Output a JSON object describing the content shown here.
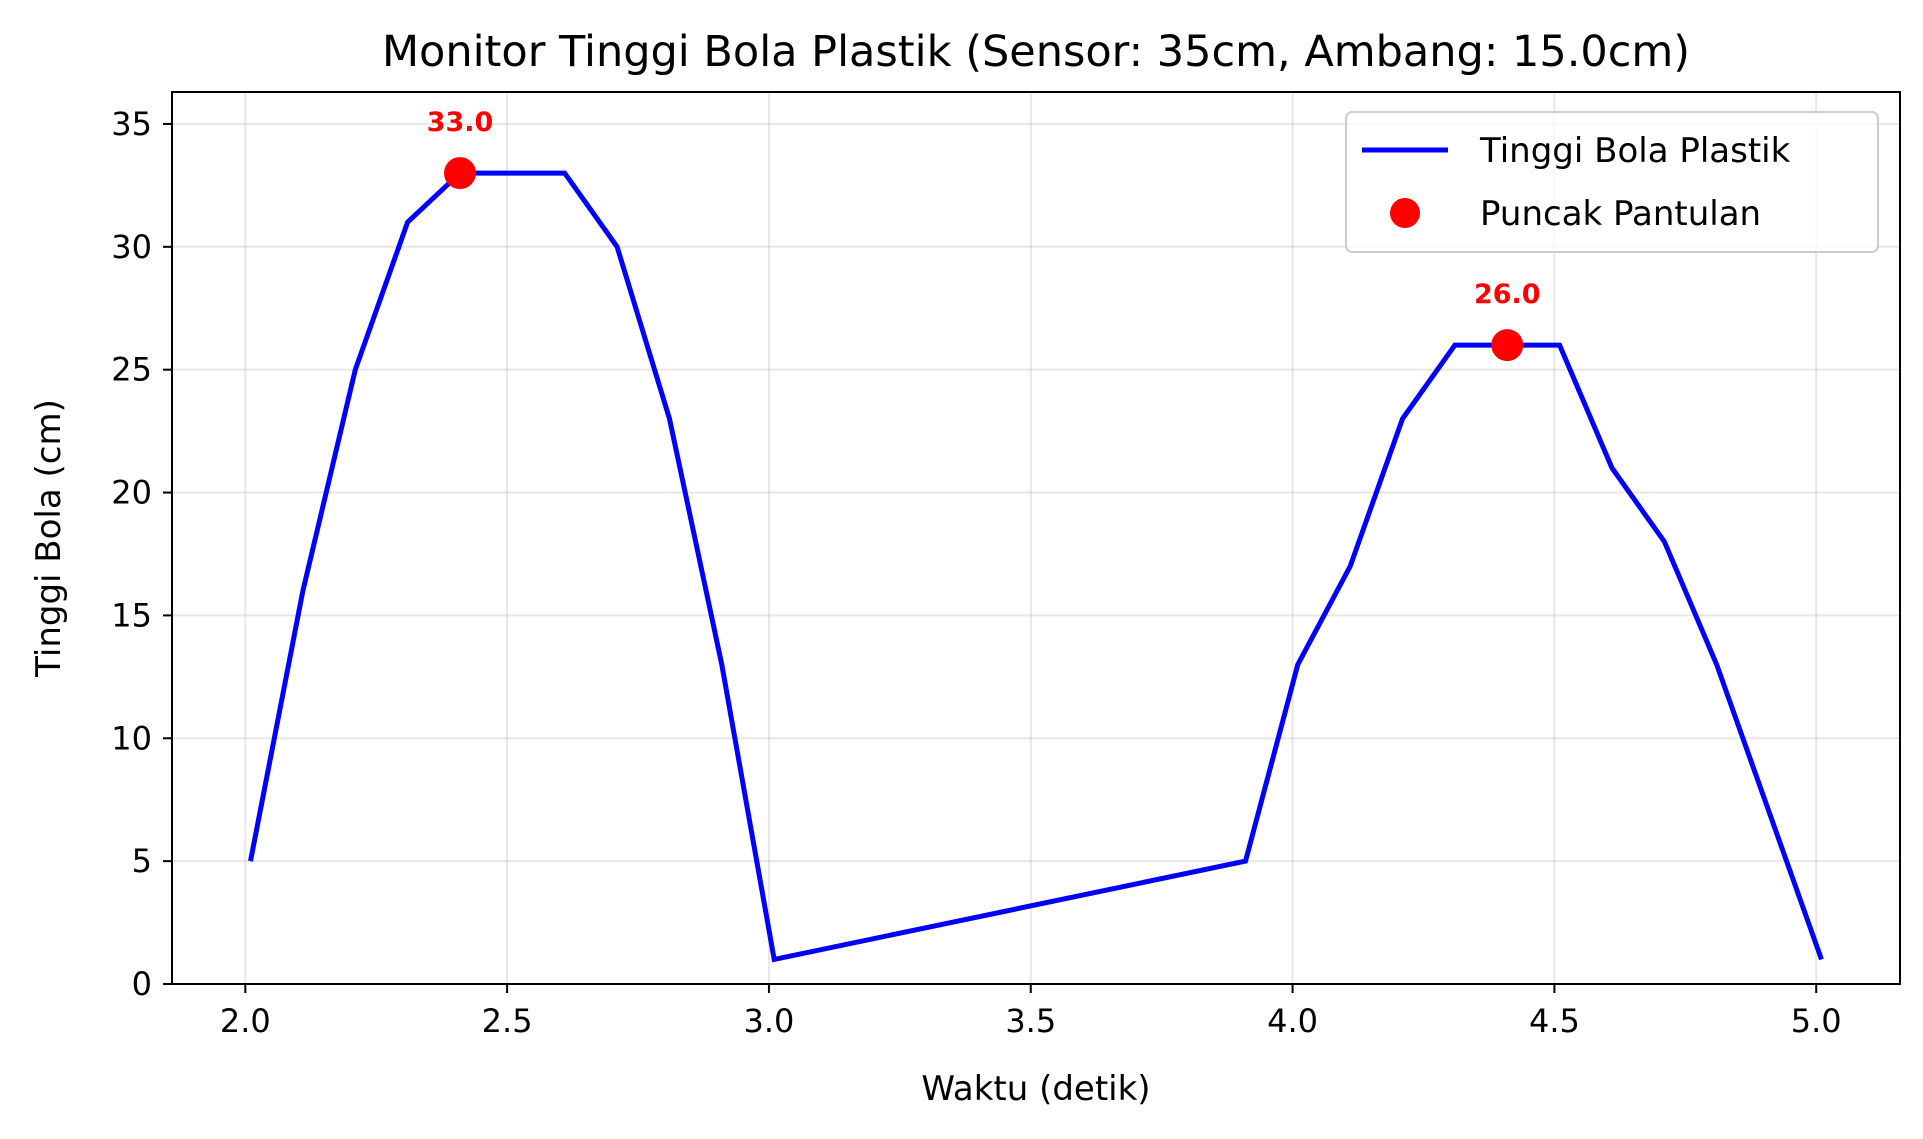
{
  "chart_data": {
    "type": "line",
    "title": "Monitor Tinggi Bola Plastik (Sensor: 35cm, Ambang: 15.0cm)",
    "xlabel": "Waktu (detik)",
    "ylabel": "Tinggi Bola (cm)",
    "xlim": [
      1.86,
      5.16
    ],
    "ylim": [
      0,
      36.3
    ],
    "xticks": [
      2.0,
      2.5,
      3.0,
      3.5,
      4.0,
      4.5,
      5.0
    ],
    "xtick_labels": [
      "2.0",
      "2.5",
      "3.0",
      "3.5",
      "4.0",
      "4.5",
      "5.0"
    ],
    "yticks": [
      0,
      5,
      10,
      15,
      20,
      25,
      30,
      35
    ],
    "ytick_labels": [
      "0",
      "5",
      "10",
      "15",
      "20",
      "25",
      "30",
      "35"
    ],
    "grid": true,
    "legend_position": "top-right",
    "series": [
      {
        "name": "Tinggi Bola Plastik",
        "color": "#0000ff",
        "x": [
          2.01,
          2.11,
          2.21,
          2.31,
          2.41,
          2.51,
          2.61,
          2.71,
          2.81,
          2.91,
          3.01,
          3.91,
          4.01,
          4.11,
          4.21,
          4.31,
          4.41,
          4.51,
          4.61,
          4.71,
          4.81,
          5.01
        ],
        "y": [
          5,
          16,
          25,
          31,
          33,
          33,
          33,
          30,
          23,
          13,
          1,
          5,
          13,
          17,
          23,
          26,
          26,
          26,
          21,
          18,
          13,
          1
        ]
      },
      {
        "name": "Puncak Pantulan",
        "color": "#ff0000",
        "marker": "circle",
        "x": [
          2.41,
          4.41
        ],
        "y": [
          33,
          26
        ],
        "labels": [
          "33.0",
          "26.0"
        ]
      }
    ]
  }
}
